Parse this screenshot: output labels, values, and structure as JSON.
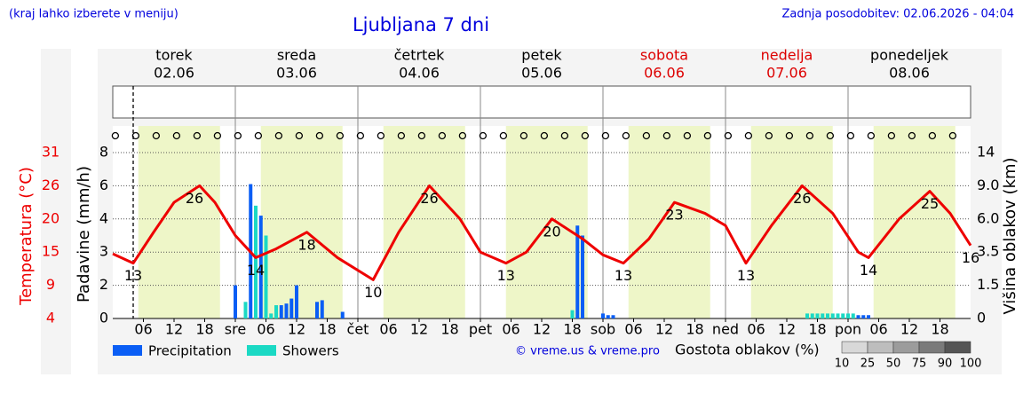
{
  "header": {
    "note": "(kraj lahko izberete v meniju)",
    "updated": "Zadnja posodobitev: 02.06.2026 - 04:04"
  },
  "chart_data": {
    "type": "meteogram",
    "title": "Ljubljana 7 dni",
    "days": [
      {
        "name": "torek",
        "date": "02.06",
        "color": "#000000"
      },
      {
        "name": "sreda",
        "date": "03.06",
        "color": "#000000"
      },
      {
        "name": "četrtek",
        "date": "04.06",
        "color": "#000000"
      },
      {
        "name": "petek",
        "date": "05.06",
        "color": "#000000"
      },
      {
        "name": "sobota",
        "date": "06.06",
        "color": "#dd0000"
      },
      {
        "name": "nedelja",
        "date": "07.06",
        "color": "#dd0000"
      },
      {
        "name": "ponedeljek",
        "date": "08.06",
        "color": "#000000"
      }
    ],
    "xlim": [
      0,
      168
    ],
    "xticks": [
      {
        "value": 6,
        "label": "06"
      },
      {
        "value": 12,
        "label": "12"
      },
      {
        "value": 18,
        "label": "18"
      },
      {
        "value": 24,
        "label": "sre"
      },
      {
        "value": 30,
        "label": "06"
      },
      {
        "value": 36,
        "label": "12"
      },
      {
        "value": 42,
        "label": "18"
      },
      {
        "value": 48,
        "label": "čet"
      },
      {
        "value": 54,
        "label": "06"
      },
      {
        "value": 60,
        "label": "12"
      },
      {
        "value": 66,
        "label": "18"
      },
      {
        "value": 72,
        "label": "pet"
      },
      {
        "value": 78,
        "label": "06"
      },
      {
        "value": 84,
        "label": "12"
      },
      {
        "value": 90,
        "label": "18"
      },
      {
        "value": 96,
        "label": "sob"
      },
      {
        "value": 102,
        "label": "06"
      },
      {
        "value": 108,
        "label": "12"
      },
      {
        "value": 114,
        "label": "18"
      },
      {
        "value": 120,
        "label": "ned"
      },
      {
        "value": 126,
        "label": "06"
      },
      {
        "value": 132,
        "label": "12"
      },
      {
        "value": 138,
        "label": "18"
      },
      {
        "value": 144,
        "label": "pon"
      },
      {
        "value": 150,
        "label": "06"
      },
      {
        "value": 156,
        "label": "12"
      },
      {
        "value": 162,
        "label": "18"
      }
    ],
    "now": 4,
    "temperature": {
      "label": "Temperatura (°C)",
      "color": "#ee0000",
      "ylim": [
        4,
        31
      ],
      "yticks": [
        4,
        9,
        15,
        20,
        26,
        31
      ],
      "x": [
        0,
        4,
        8,
        12,
        17,
        20,
        24,
        28,
        32,
        38,
        44,
        51,
        56,
        62,
        68,
        72,
        77,
        81,
        86,
        92,
        96,
        100,
        105,
        110,
        116,
        120,
        124,
        129,
        135,
        141,
        146,
        148,
        154,
        160,
        164,
        168
      ],
      "values": [
        14.7,
        13,
        18,
        23,
        26,
        23,
        17.5,
        14,
        15.5,
        18,
        14,
        10,
        18,
        26,
        20,
        15,
        13,
        15,
        20,
        17,
        14.5,
        13,
        17,
        23,
        21,
        19,
        13,
        19,
        26,
        21,
        15,
        14,
        20,
        25,
        21,
        16
      ],
      "extremes": {
        "x": [
          4,
          16,
          28,
          38,
          51,
          62,
          77,
          86,
          100,
          110,
          124,
          135,
          148,
          160,
          168
        ],
        "values": [
          13,
          26,
          14,
          18,
          10,
          26,
          13,
          20,
          13,
          23,
          13,
          26,
          14,
          25,
          16
        ]
      }
    },
    "precip_axis": {
      "label": "Padavine (mm/h)",
      "ylim": [
        0,
        8
      ],
      "yticks": [
        0,
        2,
        3,
        4,
        6,
        8
      ]
    },
    "cloud_axis": {
      "label": "Višina oblakov (km)",
      "ylim": [
        0,
        14
      ],
      "yticks": [
        0,
        1.5,
        3.5,
        {
          "value": 6,
          "label": "6.0"
        },
        {
          "value": 9,
          "label": "9.0"
        },
        14
      ]
    },
    "grid": true,
    "series": [
      {
        "name": "Precipitation",
        "color": "#0a5ef5",
        "x": [
          24,
          27,
          29,
          33,
          34,
          35,
          36,
          40,
          41,
          45,
          91,
          92,
          96,
          97,
          98,
          146,
          147,
          148
        ],
        "values": [
          2.0,
          6.1,
          4.2,
          0.8,
          0.9,
          1.2,
          2.0,
          1.0,
          1.1,
          0.4,
          3.8,
          3.5,
          0.3,
          0.2,
          0.2,
          0.2,
          0.2,
          0.2
        ]
      },
      {
        "name": "Showers",
        "color": "#1bd9c4",
        "x": [
          26,
          28,
          30,
          31,
          32,
          90,
          136,
          137,
          138,
          139,
          140,
          141,
          142,
          143,
          144,
          145
        ],
        "values": [
          1.0,
          4.8,
          3.5,
          0.3,
          0.8,
          0.5,
          0.3,
          0.3,
          0.3,
          0.3,
          0.3,
          0.3,
          0.3,
          0.3,
          0.3,
          0.3
        ]
      }
    ],
    "credit": "© vreme.us & vreme.pro",
    "cloud_density_legend": {
      "label": "Gostota oblakov (%)",
      "ticks": [
        10,
        25,
        50,
        75,
        90,
        100
      ],
      "colors": [
        "#d8d8d8",
        "#bdbdbd",
        "#9c9c9c",
        "#7a7a7a",
        "#555555"
      ]
    }
  }
}
